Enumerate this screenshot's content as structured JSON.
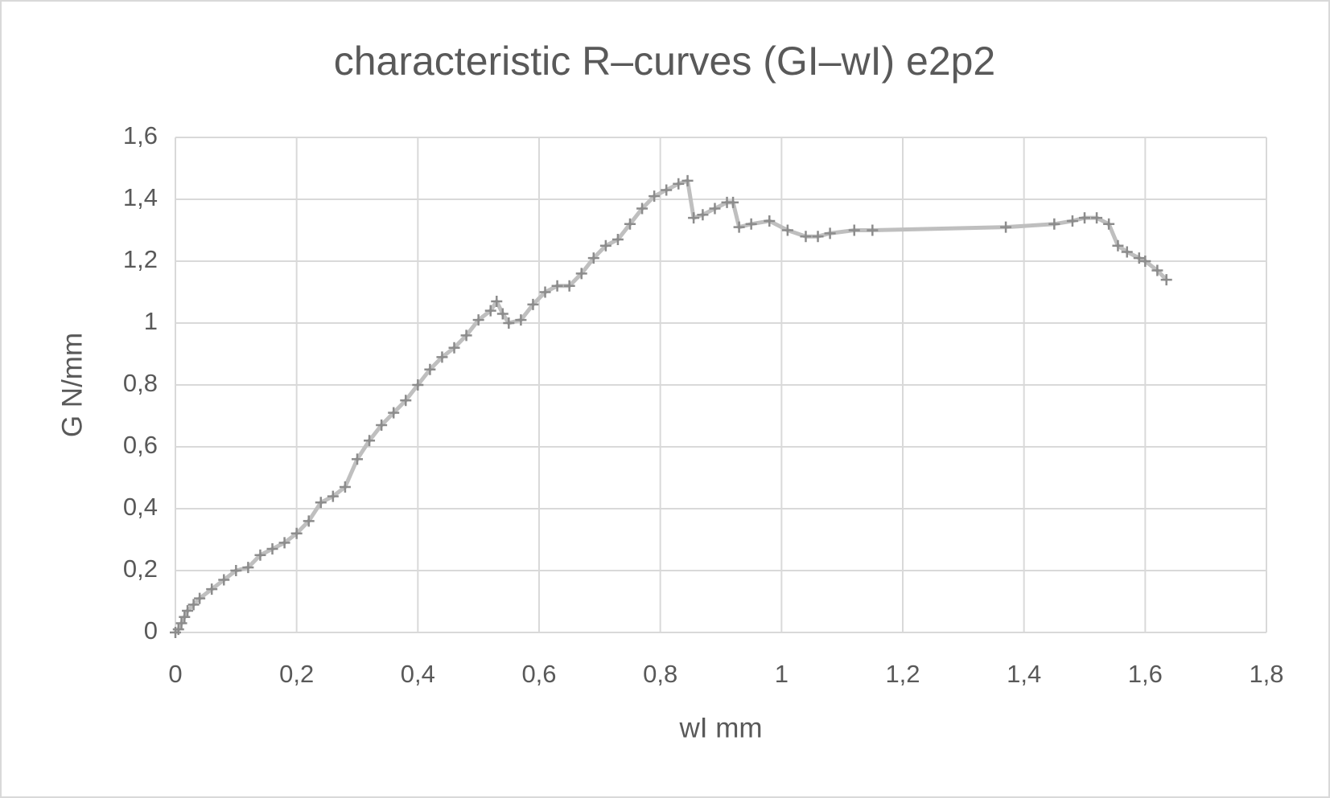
{
  "chart_data": {
    "type": "line",
    "title": "characteristic R–curves (GI–wI) e2p2",
    "x_label": "wI mm",
    "y_label": "G N/mm",
    "x": [
      0,
      0.005,
      0.01,
      0.015,
      0.02,
      0.03,
      0.04,
      0.06,
      0.08,
      0.1,
      0.12,
      0.14,
      0.16,
      0.18,
      0.2,
      0.22,
      0.24,
      0.26,
      0.28,
      0.3,
      0.32,
      0.34,
      0.36,
      0.38,
      0.4,
      0.42,
      0.44,
      0.46,
      0.48,
      0.5,
      0.52,
      0.53,
      0.54,
      0.55,
      0.57,
      0.59,
      0.61,
      0.63,
      0.65,
      0.67,
      0.69,
      0.71,
      0.73,
      0.75,
      0.77,
      0.79,
      0.81,
      0.83,
      0.845,
      0.855,
      0.87,
      0.89,
      0.91,
      0.92,
      0.93,
      0.95,
      0.98,
      1.01,
      1.04,
      1.06,
      1.08,
      1.12,
      1.15,
      1.37,
      1.45,
      1.48,
      1.5,
      1.52,
      1.54,
      1.555,
      1.57,
      1.59,
      1.6,
      1.62,
      1.635
    ],
    "series": [
      {
        "name": "GI",
        "color": "#bfbfbf",
        "marker_color": "#8c8c8c",
        "values": [
          0,
          0.01,
          0.03,
          0.05,
          0.07,
          0.09,
          0.11,
          0.14,
          0.17,
          0.2,
          0.21,
          0.25,
          0.27,
          0.29,
          0.32,
          0.36,
          0.42,
          0.44,
          0.47,
          0.56,
          0.62,
          0.67,
          0.71,
          0.75,
          0.8,
          0.85,
          0.89,
          0.92,
          0.96,
          1.01,
          1.04,
          1.07,
          1.03,
          1.0,
          1.01,
          1.06,
          1.1,
          1.12,
          1.12,
          1.16,
          1.21,
          1.25,
          1.27,
          1.32,
          1.37,
          1.41,
          1.43,
          1.45,
          1.46,
          1.34,
          1.35,
          1.37,
          1.39,
          1.39,
          1.31,
          1.32,
          1.33,
          1.3,
          1.28,
          1.28,
          1.29,
          1.3,
          1.3,
          1.31,
          1.32,
          1.33,
          1.34,
          1.34,
          1.32,
          1.25,
          1.23,
          1.21,
          1.2,
          1.17,
          1.14
        ]
      }
    ],
    "xlim": [
      0,
      1.8
    ],
    "xticks": [
      0,
      {
        "value": 0.2,
        "label": "0,2"
      },
      {
        "value": 0.4,
        "label": "0,4"
      },
      {
        "value": 0.6,
        "label": "0,6"
      },
      {
        "value": 0.8,
        "label": "0,8"
      },
      1,
      {
        "value": 1.2,
        "label": "1,2"
      },
      {
        "value": 1.4,
        "label": "1,4"
      },
      {
        "value": 1.6,
        "label": "1,6"
      },
      {
        "value": 1.8,
        "label": "1,8"
      }
    ],
    "ylim": [
      0,
      1.6
    ],
    "yticks": [
      0,
      {
        "value": 0.2,
        "label": "0,2"
      },
      {
        "value": 0.4,
        "label": "0,4"
      },
      {
        "value": 0.6,
        "label": "0,6"
      },
      {
        "value": 0.8,
        "label": "0,8"
      },
      1,
      {
        "value": 1.2,
        "label": "1,2"
      },
      {
        "value": 1.4,
        "label": "1,4"
      },
      {
        "value": 1.6,
        "label": "1,6"
      }
    ],
    "grid": true
  }
}
